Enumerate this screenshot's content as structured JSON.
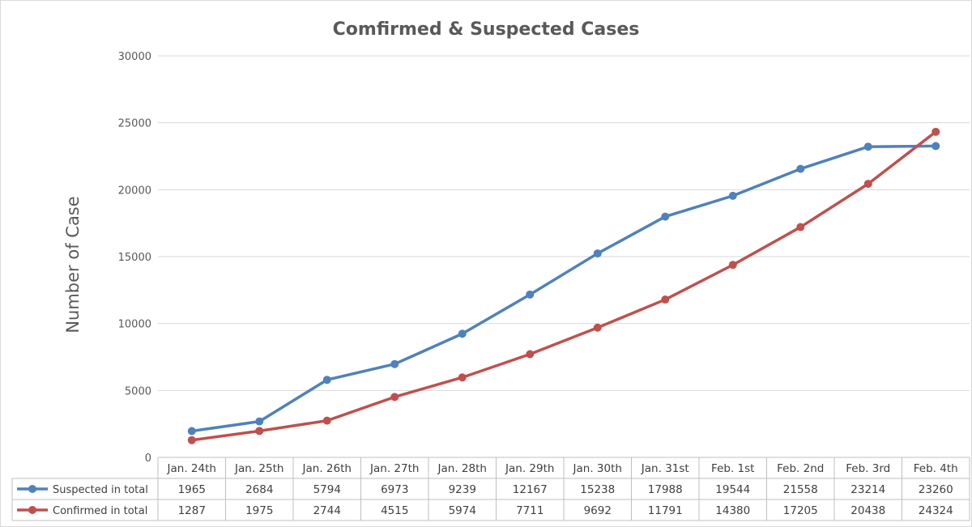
{
  "chart_data": {
    "type": "line",
    "title": "Comfirmed & Suspected Cases",
    "ylabel": "Number of Case",
    "xlabel": "",
    "ylim": [
      0,
      30000
    ],
    "yticks": [
      0,
      5000,
      10000,
      15000,
      20000,
      25000,
      30000
    ],
    "ytick_labels": [
      "0",
      "5000",
      "10000",
      "15000",
      "20000",
      "25000",
      "30000"
    ],
    "grid": true,
    "legend_placement": "data-table-left",
    "categories": [
      "Jan. 24th",
      "Jan. 25th",
      "Jan. 26th",
      "Jan. 27th",
      "Jan. 28th",
      "Jan. 29th",
      "Jan. 30th",
      "Jan. 31st",
      "Feb. 1st",
      "Feb. 2nd",
      "Feb. 3rd",
      "Feb. 4th"
    ],
    "series": [
      {
        "name": "Suspected in total",
        "color": "#4f81bd",
        "values": [
          1965,
          2684,
          5794,
          6973,
          9239,
          12167,
          15238,
          17988,
          19544,
          21558,
          23214,
          23260
        ],
        "value_labels": [
          "1965",
          "2684",
          "5794",
          "6973",
          "9239",
          "12167",
          "15238",
          "17988",
          "19544",
          "21558",
          "23214",
          "23260"
        ]
      },
      {
        "name": "Confirmed in  total",
        "color": "#c0504d",
        "values": [
          1287,
          1975,
          2744,
          4515,
          5974,
          7711,
          9692,
          11791,
          14380,
          17205,
          20438,
          24324
        ],
        "value_labels": [
          "1287",
          "1975",
          "2744",
          "4515",
          "5974",
          "7711",
          "9692",
          "11791",
          "14380",
          "17205",
          "20438",
          "24324"
        ]
      }
    ]
  }
}
